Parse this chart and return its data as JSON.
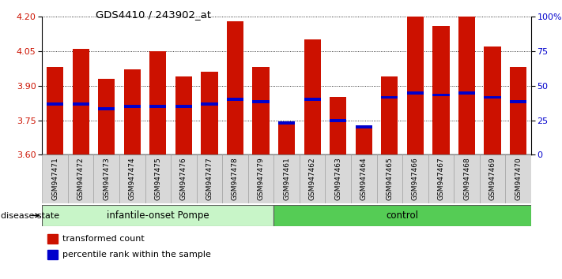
{
  "title": "GDS4410 / 243902_at",
  "samples": [
    "GSM947471",
    "GSM947472",
    "GSM947473",
    "GSM947474",
    "GSM947475",
    "GSM947476",
    "GSM947477",
    "GSM947478",
    "GSM947479",
    "GSM947461",
    "GSM947462",
    "GSM947463",
    "GSM947464",
    "GSM947465",
    "GSM947466",
    "GSM947467",
    "GSM947468",
    "GSM947469",
    "GSM947470"
  ],
  "bar_tops": [
    3.98,
    4.06,
    3.93,
    3.97,
    4.05,
    3.94,
    3.96,
    4.18,
    3.98,
    3.74,
    4.1,
    3.85,
    3.73,
    3.94,
    4.2,
    4.16,
    4.2,
    4.07,
    3.98
  ],
  "percentile_values": [
    3.82,
    3.82,
    3.8,
    3.81,
    3.81,
    3.81,
    3.82,
    3.84,
    3.83,
    3.74,
    3.84,
    3.75,
    3.72,
    3.85,
    3.87,
    3.86,
    3.87,
    3.85,
    3.83
  ],
  "group_labels": [
    "infantile-onset Pompe",
    "control"
  ],
  "group_sizes": [
    9,
    10
  ],
  "group_color_light": "#C8F5C8",
  "group_color_dark": "#55CC55",
  "bar_color": "#CC1100",
  "percentile_color": "#0000CC",
  "ymin": 3.6,
  "ymax": 4.2,
  "yticks_left": [
    3.6,
    3.75,
    3.9,
    4.05,
    4.2
  ],
  "yticks_right_vals": [
    0,
    25,
    50,
    75,
    100
  ],
  "xtick_bg": "#D8D8D8",
  "legend_items": [
    "transformed count",
    "percentile rank within the sample"
  ],
  "disease_state_label": "disease state"
}
